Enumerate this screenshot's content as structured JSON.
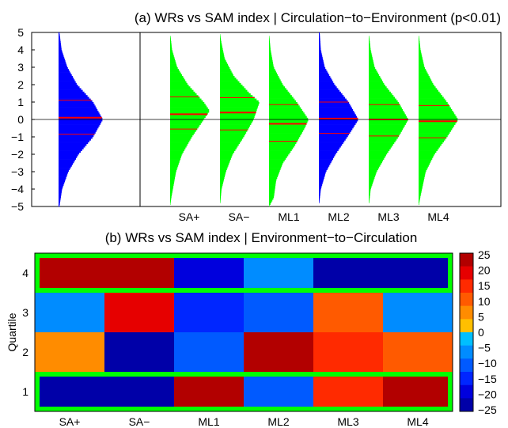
{
  "chart_data": [
    {
      "type": "violin-histogram",
      "title": "(a) WRs vs SAM index | Circulation−to−Environment (p<0.01)",
      "ylim": [
        -5,
        5
      ],
      "yticks": [
        "5",
        "4",
        "3",
        "2",
        "1",
        "0",
        "−1",
        "−2",
        "−3",
        "−4",
        "−5"
      ],
      "reference": {
        "color": "#0000ff",
        "median": 0.1,
        "q1": -0.85,
        "q3": 1.1,
        "profile": [
          [
            -5,
            0.02
          ],
          [
            -4,
            0.08
          ],
          [
            -3,
            0.22
          ],
          [
            -2,
            0.45
          ],
          [
            -1,
            0.78
          ],
          [
            0,
            1.0
          ],
          [
            1,
            0.78
          ],
          [
            2,
            0.42
          ],
          [
            3,
            0.2
          ],
          [
            4,
            0.07
          ],
          [
            5,
            0.02
          ]
        ]
      },
      "categories": [
        "SA+",
        "SA−",
        "ML1",
        "ML2",
        "ML3",
        "ML4"
      ],
      "series": [
        {
          "color": "#00ff00",
          "median": 0.3,
          "q1": -0.55,
          "q3": 1.3,
          "profile": [
            [
              -5,
              0
            ],
            [
              -4.5,
              0.03
            ],
            [
              -3,
              0.15
            ],
            [
              -2,
              0.3
            ],
            [
              -1,
              0.55
            ],
            [
              0,
              0.85
            ],
            [
              0.5,
              1.0
            ],
            [
              1,
              0.85
            ],
            [
              2,
              0.45
            ],
            [
              3,
              0.18
            ],
            [
              4,
              0.05
            ],
            [
              5,
              0
            ]
          ]
        },
        {
          "color": "#00ff00",
          "median": 0.4,
          "q1": -0.6,
          "q3": 1.25,
          "profile": [
            [
              -5,
              0
            ],
            [
              -4,
              0.04
            ],
            [
              -3,
              0.15
            ],
            [
              -2,
              0.32
            ],
            [
              -1,
              0.6
            ],
            [
              0,
              0.85
            ],
            [
              1,
              1.0
            ],
            [
              1.5,
              0.75
            ],
            [
              2.5,
              0.35
            ],
            [
              3.5,
              0.12
            ],
            [
              4.5,
              0.03
            ],
            [
              5,
              0
            ]
          ]
        },
        {
          "color": "#00ff00",
          "median": -0.25,
          "q1": -1.25,
          "q3": 0.85,
          "profile": [
            [
              -5,
              0
            ],
            [
              -4.5,
              0.12
            ],
            [
              -3.5,
              0.18
            ],
            [
              -2.5,
              0.35
            ],
            [
              -1.5,
              0.65
            ],
            [
              -0.5,
              0.9
            ],
            [
              0,
              1.0
            ],
            [
              1,
              0.7
            ],
            [
              2,
              0.35
            ],
            [
              3,
              0.12
            ],
            [
              4,
              0.04
            ],
            [
              5,
              0
            ]
          ]
        },
        {
          "color": "#0000ff",
          "median": 0.05,
          "q1": -0.8,
          "q3": 1.0,
          "profile": [
            [
              -5,
              0
            ],
            [
              -4,
              0.05
            ],
            [
              -3,
              0.18
            ],
            [
              -2,
              0.42
            ],
            [
              -1,
              0.72
            ],
            [
              0,
              1.0
            ],
            [
              1,
              0.75
            ],
            [
              2,
              0.4
            ],
            [
              3,
              0.15
            ],
            [
              4,
              0.05
            ],
            [
              5,
              0.02
            ]
          ]
        },
        {
          "color": "#00ff00",
          "median": 0.0,
          "q1": -0.95,
          "q3": 0.85,
          "profile": [
            [
              -5,
              0
            ],
            [
              -4,
              0.05
            ],
            [
              -3,
              0.2
            ],
            [
              -2,
              0.45
            ],
            [
              -1,
              0.75
            ],
            [
              0,
              1.0
            ],
            [
              1,
              0.75
            ],
            [
              2,
              0.4
            ],
            [
              3,
              0.15
            ],
            [
              4,
              0.05
            ],
            [
              5,
              0
            ]
          ]
        },
        {
          "color": "#00ff00",
          "median": -0.1,
          "q1": -1.05,
          "q3": 0.8,
          "profile": [
            [
              -5,
              0
            ],
            [
              -4.5,
              0.04
            ],
            [
              -3,
              0.18
            ],
            [
              -2,
              0.4
            ],
            [
              -1,
              0.72
            ],
            [
              0,
              1.0
            ],
            [
              1,
              0.72
            ],
            [
              2,
              0.38
            ],
            [
              3,
              0.15
            ],
            [
              4,
              0.05
            ],
            [
              5,
              0
            ]
          ]
        }
      ]
    },
    {
      "type": "heatmap",
      "title": "(b) WRs vs SAM index | Environment−to−Circulation",
      "ylabel": "Quartile",
      "x": [
        "SA+",
        "SA−",
        "ML1",
        "ML2",
        "ML3",
        "ML4"
      ],
      "y": [
        "4",
        "3",
        "2",
        "1"
      ],
      "values": [
        [
          25,
          25,
          -20,
          -5,
          -25,
          -25
        ],
        [
          -5,
          20,
          -15,
          -10,
          10,
          -5
        ],
        [
          5,
          -25,
          -10,
          25,
          15,
          10
        ],
        [
          -25,
          -25,
          25,
          -10,
          15,
          25
        ]
      ],
      "highlight_color": "#00ff00",
      "highlight_runs": [
        {
          "row": 0,
          "from": 0,
          "to": 5
        },
        {
          "row": 3,
          "from": 0,
          "to": 5
        }
      ],
      "colorbar": {
        "ticks": [
          "25",
          "20",
          "15",
          "10",
          "5",
          "0",
          "−5",
          "−10",
          "−15",
          "−20",
          "−25"
        ],
        "colors": [
          "#b20000",
          "#e60000",
          "#ff2a00",
          "#ff5a00",
          "#ff8c00",
          "#ffbf00",
          "#00bfff",
          "#008cff",
          "#005aff",
          "#0026ff",
          "#0000dd",
          "#0000a8"
        ]
      }
    }
  ]
}
